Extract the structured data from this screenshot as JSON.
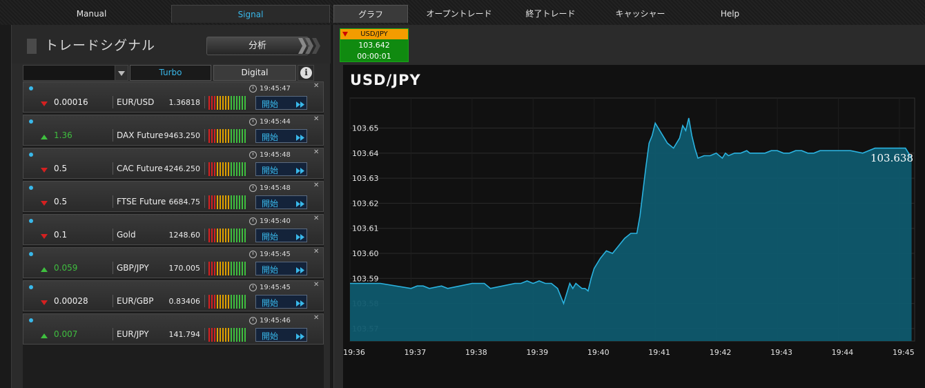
{
  "nav": {
    "manual": "Manual",
    "signal": "Signal",
    "graph": "グラフ",
    "open_trades": "オープントレード",
    "closed_trades": "終了トレード",
    "cashier": "キャッシャー",
    "help": "Help"
  },
  "left": {
    "title": "トレードシグナル",
    "analyze": "分析",
    "turbo": "Turbo",
    "digital": "Digital",
    "info": "i",
    "start_label": "開始",
    "signals": [
      {
        "dir": "down",
        "change": "0.00016",
        "symbol": "EUR/USD",
        "price": "1.36818",
        "time": "19:45:47"
      },
      {
        "dir": "up",
        "change": "1.36",
        "symbol": "DAX Future",
        "price": "9463.250",
        "time": "19:45:44"
      },
      {
        "dir": "down",
        "change": "0.5",
        "symbol": "CAC Future",
        "price": "4246.250",
        "time": "19:45:48"
      },
      {
        "dir": "down",
        "change": "0.5",
        "symbol": "FTSE Future",
        "price": "6684.75",
        "time": "19:45:48"
      },
      {
        "dir": "down",
        "change": "0.1",
        "symbol": "Gold",
        "price": "1248.60",
        "time": "19:45:40"
      },
      {
        "dir": "up",
        "change": "0.059",
        "symbol": "GBP/JPY",
        "price": "170.005",
        "time": "19:45:45"
      },
      {
        "dir": "down",
        "change": "0.00028",
        "symbol": "EUR/GBP",
        "price": "0.83406",
        "time": "19:45:45"
      },
      {
        "dir": "up",
        "change": "0.007",
        "symbol": "EUR/JPY",
        "price": "141.794",
        "time": "19:45:46"
      }
    ],
    "colors": {
      "up": "#3fbf3f",
      "down": "#d42020",
      "accent": "#39b8ea"
    }
  },
  "ticker": {
    "symbol": "USD/JPY",
    "price": "103.642",
    "timer": "00:00:01"
  },
  "chart_data": {
    "type": "area",
    "title": "USD/JPY",
    "current_label": "103.638",
    "xlabel": "",
    "ylabel": "",
    "ylim": [
      103.565,
      103.662
    ],
    "yticks": [
      "103.57",
      "103.58",
      "103.59",
      "103.60",
      "103.61",
      "103.62",
      "103.63",
      "103.64",
      "103.65"
    ],
    "xticks": [
      "19:36",
      "19:37",
      "19:38",
      "19:39",
      "19:40",
      "19:41",
      "19:42",
      "19:43",
      "19:44",
      "19:45"
    ],
    "grid": true,
    "color": "#2bb3e0",
    "fill": "#0f5a6e",
    "x": [
      36.0,
      36.5,
      37.0,
      37.1,
      37.2,
      37.3,
      37.5,
      37.6,
      37.8,
      38.0,
      38.2,
      38.3,
      38.5,
      38.7,
      38.8,
      38.9,
      39.0,
      39.1,
      39.2,
      39.3,
      39.4,
      39.5,
      39.55,
      39.6,
      39.65,
      39.7,
      39.75,
      39.8,
      39.85,
      39.9,
      39.95,
      40.0,
      40.1,
      40.2,
      40.3,
      40.4,
      40.5,
      40.6,
      40.7,
      40.75,
      40.8,
      40.85,
      40.9,
      40.95,
      41.0,
      41.1,
      41.2,
      41.3,
      41.4,
      41.45,
      41.5,
      41.55,
      41.6,
      41.65,
      41.7,
      41.8,
      41.9,
      42.0,
      42.1,
      42.15,
      42.2,
      42.3,
      42.4,
      42.5,
      42.55,
      42.6,
      42.7,
      42.8,
      42.9,
      43.0,
      43.1,
      43.2,
      43.3,
      43.4,
      43.5,
      43.6,
      43.7,
      43.8,
      43.9,
      44.0,
      44.2,
      44.4,
      44.6,
      44.8,
      45.0,
      45.1,
      45.2
    ],
    "y": [
      103.588,
      103.588,
      103.586,
      103.587,
      103.587,
      103.586,
      103.587,
      103.586,
      103.587,
      103.588,
      103.588,
      103.586,
      103.587,
      103.588,
      103.588,
      103.589,
      103.588,
      103.589,
      103.588,
      103.588,
      103.586,
      103.58,
      103.584,
      103.588,
      103.586,
      103.588,
      103.587,
      103.586,
      103.586,
      103.585,
      103.59,
      103.594,
      103.598,
      103.601,
      103.6,
      103.603,
      103.606,
      103.608,
      103.608,
      103.615,
      103.625,
      103.635,
      103.644,
      103.647,
      103.652,
      103.648,
      103.644,
      103.642,
      103.646,
      103.651,
      103.649,
      103.654,
      103.647,
      103.642,
      103.638,
      103.639,
      103.639,
      103.64,
      103.638,
      103.64,
      103.639,
      103.64,
      103.64,
      103.641,
      103.64,
      103.64,
      103.64,
      103.64,
      103.641,
      103.641,
      103.64,
      103.64,
      103.641,
      103.641,
      103.64,
      103.64,
      103.641,
      103.641,
      103.641,
      103.641,
      103.641,
      103.64,
      103.642,
      103.642,
      103.642,
      103.642,
      103.638
    ]
  }
}
